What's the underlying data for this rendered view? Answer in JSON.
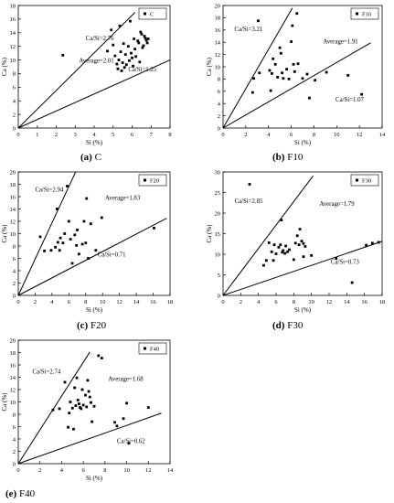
{
  "colors": {
    "axis": "#000000",
    "points": "#000000",
    "lines": "#000000",
    "background": "#ffffff"
  },
  "chart_data": [
    {
      "type": "scatter",
      "caption_id": "(a)",
      "caption_text": "C",
      "xlabel": "Si (%)",
      "ylabel": "Ca (%)",
      "xlim": [
        0,
        8
      ],
      "ylim": [
        0,
        18
      ],
      "xticks": [
        0,
        1,
        2,
        3,
        4,
        5,
        6,
        7,
        8
      ],
      "yticks": [
        0,
        2,
        4,
        6,
        8,
        10,
        12,
        14,
        16,
        18
      ],
      "legend": "C",
      "legend_position": "top-right",
      "series": [
        {
          "name": "C",
          "points": [
            [
              2.35,
              10.7
            ],
            [
              4.7,
              11.3
            ],
            [
              4.9,
              14.4
            ],
            [
              5.0,
              12.2
            ],
            [
              5.1,
              10.6
            ],
            [
              5.2,
              9.4
            ],
            [
              5.25,
              8.7
            ],
            [
              5.3,
              10.0
            ],
            [
              5.35,
              15.0
            ],
            [
              5.4,
              11.2
            ],
            [
              5.45,
              8.4
            ],
            [
              5.5,
              9.6
            ],
            [
              5.55,
              12.4
            ],
            [
              5.6,
              8.9
            ],
            [
              5.65,
              10.8
            ],
            [
              5.7,
              9.3
            ],
            [
              5.8,
              12.0
            ],
            [
              5.85,
              9.9
            ],
            [
              5.9,
              15.7
            ],
            [
              5.95,
              11.0
            ],
            [
              6.0,
              10.3
            ],
            [
              6.05,
              9.1
            ],
            [
              6.1,
              13.1
            ],
            [
              6.15,
              11.6
            ],
            [
              6.2,
              10.5
            ],
            [
              6.3,
              12.8
            ],
            [
              6.35,
              12.5
            ],
            [
              6.4,
              9.7
            ],
            [
              6.45,
              14.1
            ],
            [
              6.5,
              13.8
            ],
            [
              6.55,
              11.8
            ],
            [
              6.6,
              12.1
            ],
            [
              6.65,
              13.5
            ],
            [
              6.7,
              13.2
            ],
            [
              6.75,
              12.9
            ],
            [
              6.8,
              12.5
            ],
            [
              6.85,
              13.1
            ]
          ]
        }
      ],
      "ref_lines": [
        {
          "label": "Ca/Si=2.76",
          "slope": 2.76,
          "x_end": 6.15
        },
        {
          "label": "Ca/Si=1.25",
          "slope": 1.25,
          "x_end": 8
        }
      ],
      "annotations": [
        {
          "text": "Ca/Si=2.76",
          "x": 3.55,
          "y": 12.9
        },
        {
          "text": "Average=2.01",
          "x": 3.2,
          "y": 9.6
        },
        {
          "text": "Ca/Si=1.25",
          "x": 5.8,
          "y": 8.3
        }
      ]
    },
    {
      "type": "scatter",
      "caption_id": "(b)",
      "caption_text": "F10",
      "xlabel": "Si (%)",
      "ylabel": "Ca (%)",
      "xlim": [
        0,
        14
      ],
      "ylim": [
        0,
        20
      ],
      "xticks": [
        0,
        2,
        4,
        6,
        8,
        10,
        12,
        14
      ],
      "yticks": [
        0,
        2,
        4,
        6,
        8,
        10,
        12,
        14,
        16,
        18,
        20
      ],
      "legend": "F10",
      "legend_position": "top-right",
      "series": [
        {
          "name": "F10",
          "points": [
            [
              2.6,
              5.8
            ],
            [
              2.7,
              8.1
            ],
            [
              3.1,
              17.5
            ],
            [
              3.2,
              9.0
            ],
            [
              4.1,
              9.4
            ],
            [
              4.2,
              6.1
            ],
            [
              4.3,
              8.9
            ],
            [
              4.4,
              11.3
            ],
            [
              4.6,
              10.4
            ],
            [
              4.8,
              8.3
            ],
            [
              5.0,
              13.1
            ],
            [
              5.1,
              12.2
            ],
            [
              5.2,
              9.0
            ],
            [
              5.3,
              8.1
            ],
            [
              5.6,
              9.6
            ],
            [
              5.8,
              8.0
            ],
            [
              6.0,
              14.1
            ],
            [
              6.1,
              16.7
            ],
            [
              6.2,
              10.4
            ],
            [
              6.3,
              9.2
            ],
            [
              6.5,
              18.7
            ],
            [
              6.6,
              10.5
            ],
            [
              7.0,
              8.1
            ],
            [
              7.4,
              8.8
            ],
            [
              7.6,
              4.9
            ],
            [
              8.1,
              7.8
            ],
            [
              9.1,
              9.1
            ],
            [
              11.0,
              8.6
            ],
            [
              12.2,
              5.5
            ]
          ]
        }
      ],
      "ref_lines": [
        {
          "label": "Ca/Si=3.21",
          "slope": 3.21,
          "x_end": 6.1
        },
        {
          "label": "Ca/Si=1.07",
          "slope": 1.07,
          "x_end": 13
        }
      ],
      "annotations": [
        {
          "text": "Ca/Si=3.21",
          "x": 1.0,
          "y": 15.8
        },
        {
          "text": "Average=1.91",
          "x": 8.8,
          "y": 13.8
        },
        {
          "text": "Ca/Si=1.07",
          "x": 9.9,
          "y": 4.3
        }
      ]
    },
    {
      "type": "scatter",
      "caption_id": "(c)",
      "caption_text": "F20",
      "xlabel": "Si (%)",
      "ylabel": "Ca (%)",
      "xlim": [
        0,
        18
      ],
      "ylim": [
        0,
        20
      ],
      "xticks": [
        0,
        2,
        4,
        6,
        8,
        10,
        12,
        14,
        16,
        18
      ],
      "yticks": [
        0,
        2,
        4,
        6,
        8,
        10,
        12,
        14,
        16,
        18,
        20
      ],
      "legend": "F20",
      "legend_position": "top-right",
      "series": [
        {
          "name": "F20",
          "points": [
            [
              2.6,
              9.5
            ],
            [
              3.1,
              7.2
            ],
            [
              3.9,
              7.3
            ],
            [
              4.4,
              7.8
            ],
            [
              4.6,
              14.0
            ],
            [
              4.7,
              8.6
            ],
            [
              4.9,
              7.3
            ],
            [
              5.0,
              9.3
            ],
            [
              5.3,
              8.5
            ],
            [
              5.5,
              10.0
            ],
            [
              5.8,
              17.7
            ],
            [
              6.0,
              12.0
            ],
            [
              6.2,
              9.1
            ],
            [
              6.4,
              5.2
            ],
            [
              6.7,
              9.8
            ],
            [
              6.9,
              8.1
            ],
            [
              7.0,
              10.6
            ],
            [
              7.2,
              6.7
            ],
            [
              7.6,
              8.3
            ],
            [
              7.8,
              12.0
            ],
            [
              8.0,
              8.5
            ],
            [
              8.1,
              15.7
            ],
            [
              8.3,
              6.0
            ],
            [
              8.6,
              11.6
            ],
            [
              9.2,
              7.3
            ],
            [
              9.9,
              12.6
            ],
            [
              16.1,
              10.9
            ]
          ]
        }
      ],
      "ref_lines": [
        {
          "label": "Ca/Si=2.94",
          "slope": 2.94,
          "x_end": 6.8
        },
        {
          "label": "Ca/Si=0.71",
          "slope": 0.71,
          "x_end": 17.6
        }
      ],
      "annotations": [
        {
          "text": "Ca/Si=2.94",
          "x": 2.0,
          "y": 16.8
        },
        {
          "text": "Average=1.83",
          "x": 10.3,
          "y": 15.5
        },
        {
          "text": "Ca/Si=0.71",
          "x": 9.4,
          "y": 6.3
        }
      ]
    },
    {
      "type": "scatter",
      "caption_id": "(d)",
      "caption_text": "F30",
      "xlabel": "Si (%)",
      "ylabel": "Ca (%)",
      "xlim": [
        0,
        18
      ],
      "ylim": [
        0,
        30
      ],
      "xticks": [
        0,
        2,
        4,
        6,
        8,
        10,
        12,
        14,
        16,
        18
      ],
      "yticks": [
        0,
        5,
        10,
        15,
        20,
        25,
        30
      ],
      "legend": "F30",
      "legend_position": "top-right",
      "series": [
        {
          "name": "F30",
          "points": [
            [
              3.0,
              27.0
            ],
            [
              4.6,
              7.3
            ],
            [
              4.9,
              8.5
            ],
            [
              5.2,
              12.8
            ],
            [
              5.5,
              10.6
            ],
            [
              5.7,
              8.5
            ],
            [
              5.8,
              12.3
            ],
            [
              6.0,
              10.1
            ],
            [
              6.3,
              11.7
            ],
            [
              6.5,
              12.3
            ],
            [
              6.6,
              18.3
            ],
            [
              6.7,
              10.5
            ],
            [
              6.8,
              10.9
            ],
            [
              7.0,
              10.2
            ],
            [
              7.1,
              12.0
            ],
            [
              7.3,
              10.6
            ],
            [
              7.5,
              11.1
            ],
            [
              8.0,
              8.7
            ],
            [
              8.2,
              12.7
            ],
            [
              8.4,
              14.5
            ],
            [
              8.6,
              12.3
            ],
            [
              8.7,
              16.1
            ],
            [
              8.9,
              13.2
            ],
            [
              9.1,
              12.6
            ],
            [
              9.3,
              11.9
            ],
            [
              9.1,
              9.4
            ],
            [
              10.0,
              9.7
            ],
            [
              12.8,
              9.0
            ],
            [
              14.6,
              3.1
            ],
            [
              16.2,
              12.2
            ],
            [
              16.9,
              12.7
            ],
            [
              17.6,
              12.9
            ]
          ]
        }
      ],
      "ref_lines": [
        {
          "label": "Ca/Si=2.85",
          "slope": 2.85,
          "x_end": 10.2
        },
        {
          "label": "Ca/Si=0.73",
          "slope": 0.73,
          "x_end": 18
        }
      ],
      "annotations": [
        {
          "text": "Ca/Si=2.85",
          "x": 1.3,
          "y": 22.5
        },
        {
          "text": "Average=1.79",
          "x": 10.9,
          "y": 21.8
        },
        {
          "text": "Ca/Si=0.73",
          "x": 12.2,
          "y": 7.7
        }
      ]
    },
    {
      "type": "scatter",
      "caption_id": "(e)",
      "caption_text": "F40",
      "xlabel": "Si (%)",
      "ylabel": "Ca (%)",
      "xlim": [
        0,
        14
      ],
      "ylim": [
        0,
        20
      ],
      "xticks": [
        0,
        2,
        4,
        6,
        8,
        10,
        12,
        14
      ],
      "yticks": [
        0,
        2,
        4,
        6,
        8,
        10,
        12,
        14,
        16,
        18,
        20
      ],
      "legend": "F40",
      "legend_position": "top-right",
      "series": [
        {
          "name": "F40",
          "points": [
            [
              3.2,
              8.7
            ],
            [
              3.8,
              8.9
            ],
            [
              4.3,
              13.2
            ],
            [
              4.6,
              5.9
            ],
            [
              4.7,
              8.2
            ],
            [
              4.8,
              10.0
            ],
            [
              5.0,
              9.0
            ],
            [
              5.1,
              5.6
            ],
            [
              5.2,
              12.3
            ],
            [
              5.3,
              9.4
            ],
            [
              5.4,
              13.9
            ],
            [
              5.5,
              10.3
            ],
            [
              5.6,
              9.7
            ],
            [
              5.7,
              9.1
            ],
            [
              5.8,
              8.9
            ],
            [
              5.9,
              12.0
            ],
            [
              6.0,
              9.5
            ],
            [
              6.2,
              11.1
            ],
            [
              6.3,
              9.2
            ],
            [
              6.4,
              13.5
            ],
            [
              6.5,
              11.7
            ],
            [
              6.6,
              10.8
            ],
            [
              6.7,
              9.9
            ],
            [
              6.8,
              6.8
            ],
            [
              7.0,
              9.3
            ],
            [
              7.4,
              17.5
            ],
            [
              7.7,
              17.1
            ],
            [
              8.9,
              6.7
            ],
            [
              9.1,
              6.1
            ],
            [
              9.7,
              7.3
            ],
            [
              10.0,
              9.8
            ],
            [
              10.2,
              3.3
            ],
            [
              12.0,
              9.1
            ]
          ]
        }
      ],
      "ref_lines": [
        {
          "label": "Ca/Si=2.74",
          "slope": 2.74,
          "x_end": 6.6
        },
        {
          "label": "Ca/Si=0.62",
          "slope": 0.62,
          "x_end": 13.2
        }
      ],
      "annotations": [
        {
          "text": "Ca/Si=2.74",
          "x": 1.3,
          "y": 14.6
        },
        {
          "text": "Average=1.68",
          "x": 8.3,
          "y": 13.4
        },
        {
          "text": "Ca/Si=0.62",
          "x": 9.1,
          "y": 3.3
        }
      ]
    }
  ]
}
